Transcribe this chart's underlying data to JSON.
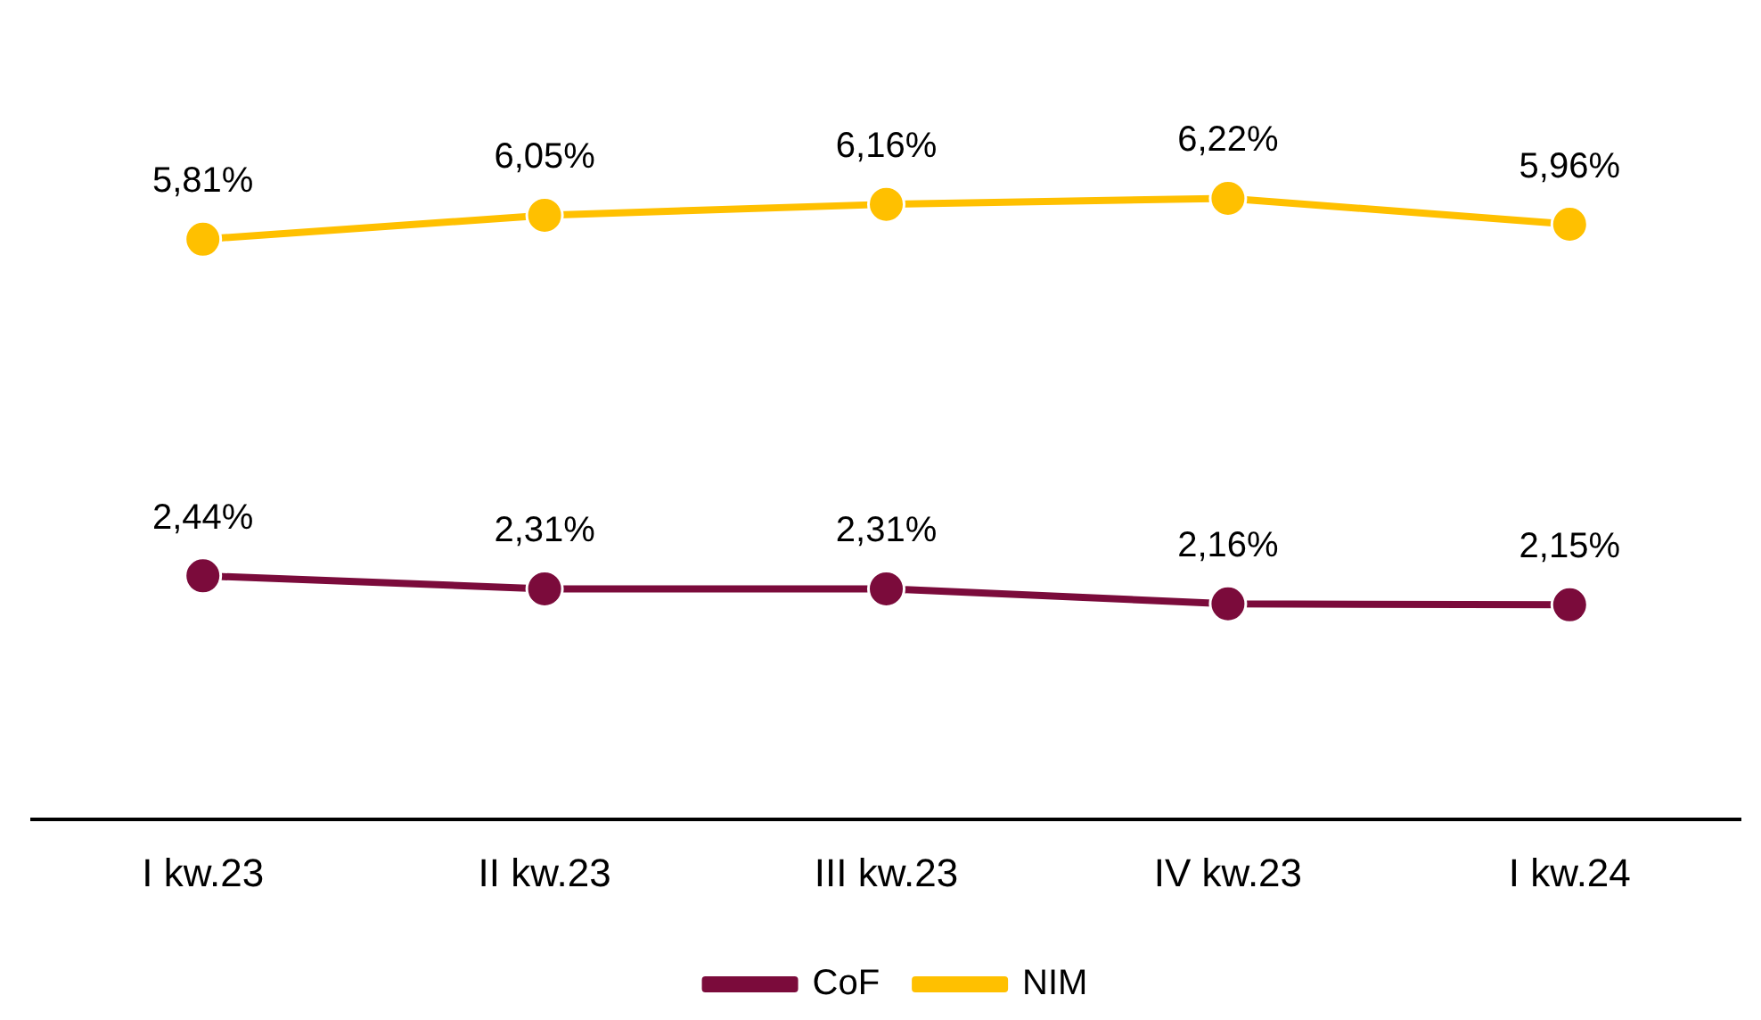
{
  "chart_data": {
    "type": "line",
    "categories": [
      "I kw.23",
      "II kw.23",
      "III kw.23",
      "IV kw.23",
      "I kw.24"
    ],
    "series": [
      {
        "name": "CoF",
        "color": "#7b0b3b",
        "values": [
          2.44,
          2.31,
          2.31,
          2.16,
          2.15
        ],
        "value_labels": [
          "2,44%",
          "2,31%",
          "2,31%",
          "2,16%",
          "2,15%"
        ]
      },
      {
        "name": "NIM",
        "color": "#ffc000",
        "values": [
          5.81,
          6.05,
          6.16,
          6.22,
          5.96
        ],
        "value_labels": [
          "5,81%",
          "6,05%",
          "6,16%",
          "6,22%",
          "5,96%"
        ]
      }
    ],
    "grid": false,
    "legend": "bottom",
    "marker": "circle",
    "line_style": "solid",
    "tick_labels": "x"
  }
}
